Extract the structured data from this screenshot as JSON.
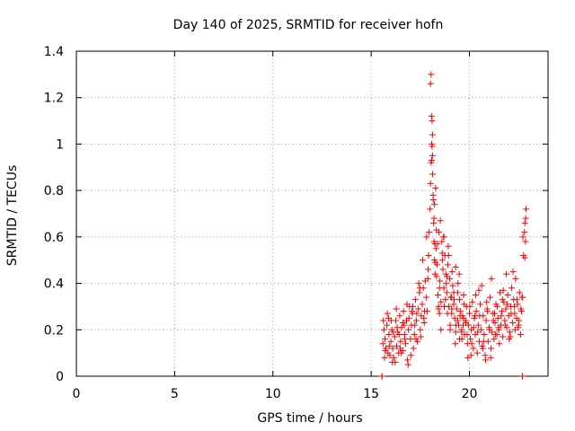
{
  "chart_data": {
    "type": "scatter",
    "title": "Day 140 of 2025, SRMTID for receiver hofn",
    "xlabel": "GPS time / hours",
    "ylabel": "SRMTID / TECUs",
    "xlim": [
      0,
      24
    ],
    "ylim": [
      0,
      1.4
    ],
    "x_ticks": [
      0,
      5,
      10,
      15,
      20
    ],
    "x_tick_labels": [
      "0",
      "5",
      "10",
      "15",
      "20"
    ],
    "y_ticks": [
      0,
      0.2,
      0.4,
      0.6,
      0.8,
      1.0,
      1.2,
      1.4
    ],
    "y_tick_labels": [
      "0",
      "0.2",
      "0.4",
      "0.6",
      "0.8",
      "1",
      "1.2",
      "1.4"
    ],
    "grid": true,
    "marker": "+",
    "marker_color": "#ff0000",
    "series": [
      {
        "name": "SRMTID",
        "x": [
          15.55,
          15.55,
          22.7,
          22.7,
          15.6,
          15.65,
          15.7,
          15.75,
          15.8,
          15.85,
          15.9,
          15.95,
          16.0,
          16.05,
          16.1,
          16.15,
          16.2,
          16.25,
          16.3,
          16.35,
          16.4,
          16.45,
          16.5,
          16.55,
          16.6,
          16.65,
          16.7,
          16.75,
          16.8,
          16.85,
          16.9,
          16.95,
          17.0,
          17.05,
          17.1,
          17.15,
          17.2,
          17.25,
          17.3,
          17.35,
          17.4,
          17.45,
          17.5,
          17.55,
          17.6,
          17.65,
          17.7,
          17.75,
          17.8,
          17.85,
          17.9,
          17.95,
          18.0,
          18.02,
          18.05,
          18.08,
          18.1,
          18.12,
          18.15,
          18.18,
          18.2,
          18.22,
          18.25,
          18.3,
          18.35,
          18.4,
          18.45,
          18.5,
          18.55,
          18.6,
          18.65,
          18.7,
          18.75,
          18.8,
          18.85,
          18.9,
          18.95,
          19.0,
          19.05,
          19.1,
          19.15,
          19.2,
          19.25,
          19.3,
          19.35,
          19.4,
          19.45,
          19.5,
          19.55,
          19.6,
          19.65,
          19.7,
          19.75,
          19.8,
          19.85,
          19.9,
          19.95,
          20.0,
          20.05,
          20.1,
          20.15,
          20.2,
          20.25,
          20.3,
          20.35,
          20.4,
          20.45,
          20.5,
          20.55,
          20.6,
          20.65,
          20.7,
          20.75,
          20.8,
          20.85,
          20.9,
          20.95,
          21.0,
          21.05,
          21.1,
          21.15,
          21.2,
          21.25,
          21.3,
          21.35,
          21.4,
          21.45,
          21.5,
          21.55,
          21.6,
          21.65,
          21.7,
          21.75,
          21.8,
          21.85,
          21.9,
          21.95,
          22.0,
          22.05,
          22.1,
          22.15,
          22.2,
          22.25,
          22.3,
          22.35,
          22.4,
          22.45,
          22.5,
          22.55,
          22.6,
          22.65,
          22.7,
          22.75,
          22.8,
          22.82,
          22.85,
          22.88,
          15.62,
          15.72,
          15.82,
          15.92,
          16.02,
          16.12,
          16.22,
          16.32,
          16.42,
          16.52,
          16.62,
          16.72,
          16.82,
          16.92,
          17.02,
          17.12,
          17.22,
          17.32,
          17.42,
          17.52,
          17.62,
          17.72,
          17.82,
          17.92,
          18.02,
          18.12,
          18.22,
          18.32,
          18.42,
          18.52,
          18.62,
          18.72,
          18.82,
          18.92,
          19.02,
          19.12,
          19.22,
          19.32,
          19.42,
          19.52,
          19.62,
          19.72,
          19.82,
          19.92,
          20.02,
          20.12,
          20.22,
          20.32,
          20.42,
          20.52,
          20.62,
          20.72,
          20.82,
          20.92,
          21.02,
          21.12,
          21.22,
          21.32,
          21.42,
          21.52,
          21.62,
          21.72,
          21.82,
          21.92,
          22.02,
          22.12,
          22.22,
          22.32,
          22.42,
          22.52,
          22.62,
          22.72,
          22.82,
          15.68,
          15.88,
          16.08,
          16.28,
          16.48,
          16.68,
          16.88,
          17.08,
          17.28,
          17.48,
          17.68,
          17.88,
          18.08,
          18.28,
          18.48,
          18.68,
          18.88,
          19.08,
          19.28,
          19.48,
          19.68,
          19.88,
          20.08,
          20.28,
          20.48,
          20.68,
          20.88,
          21.08,
          21.28,
          21.48,
          21.68,
          21.88,
          22.08,
          22.28,
          22.48,
          22.68,
          22.86,
          18.05,
          18.07,
          18.1,
          18.13,
          18.16,
          18.2,
          18.24,
          18.28,
          18.33,
          18.38,
          18.43,
          18.48,
          18.55,
          18.62,
          18.7,
          18.78,
          18.86,
          18.94,
          19.02,
          19.1,
          19.2,
          19.3,
          19.4,
          19.5,
          19.6,
          19.7
        ],
        "y": [
          0.0,
          0.0,
          0.0,
          0.0,
          0.14,
          0.2,
          0.16,
          0.12,
          0.22,
          0.1,
          0.18,
          0.09,
          0.15,
          0.2,
          0.12,
          0.08,
          0.17,
          0.24,
          0.13,
          0.19,
          0.1,
          0.26,
          0.15,
          0.21,
          0.11,
          0.28,
          0.18,
          0.14,
          0.24,
          0.07,
          0.2,
          0.3,
          0.16,
          0.22,
          0.27,
          0.12,
          0.18,
          0.33,
          0.24,
          0.15,
          0.29,
          0.36,
          0.2,
          0.26,
          0.31,
          0.38,
          0.23,
          0.41,
          0.34,
          0.28,
          0.46,
          0.62,
          0.72,
          0.83,
          0.92,
          1.0,
          1.1,
          0.95,
          0.78,
          0.66,
          0.58,
          0.5,
          0.44,
          0.55,
          0.48,
          0.35,
          0.62,
          0.41,
          0.32,
          0.58,
          0.46,
          0.38,
          0.52,
          0.44,
          0.36,
          0.48,
          0.3,
          0.42,
          0.34,
          0.27,
          0.39,
          0.31,
          0.25,
          0.47,
          0.29,
          0.36,
          0.22,
          0.33,
          0.28,
          0.19,
          0.26,
          0.35,
          0.18,
          0.24,
          0.3,
          0.14,
          0.22,
          0.27,
          0.16,
          0.2,
          0.32,
          0.12,
          0.25,
          0.18,
          0.28,
          0.1,
          0.22,
          0.15,
          0.31,
          0.2,
          0.13,
          0.26,
          0.18,
          0.09,
          0.24,
          0.29,
          0.15,
          0.21,
          0.34,
          0.12,
          0.19,
          0.27,
          0.16,
          0.23,
          0.31,
          0.18,
          0.25,
          0.2,
          0.36,
          0.22,
          0.28,
          0.17,
          0.32,
          0.24,
          0.29,
          0.21,
          0.35,
          0.26,
          0.19,
          0.3,
          0.38,
          0.23,
          0.33,
          0.27,
          0.42,
          0.25,
          0.31,
          0.22,
          0.36,
          0.18,
          0.28,
          0.34,
          0.52,
          0.62,
          0.66,
          0.58,
          0.72,
          0.24,
          0.11,
          0.27,
          0.13,
          0.24,
          0.19,
          0.06,
          0.21,
          0.18,
          0.1,
          0.23,
          0.16,
          0.31,
          0.25,
          0.09,
          0.3,
          0.22,
          0.27,
          0.4,
          0.17,
          0.5,
          0.28,
          0.6,
          0.52,
          1.26,
          1.04,
          0.74,
          0.63,
          0.29,
          0.67,
          0.53,
          0.3,
          0.4,
          0.56,
          0.2,
          0.45,
          0.33,
          0.22,
          0.4,
          0.26,
          0.16,
          0.31,
          0.23,
          0.08,
          0.3,
          0.14,
          0.21,
          0.35,
          0.19,
          0.26,
          0.39,
          0.15,
          0.07,
          0.28,
          0.2,
          0.42,
          0.24,
          0.18,
          0.3,
          0.14,
          0.26,
          0.37,
          0.22,
          0.31,
          0.16,
          0.27,
          0.45,
          0.2,
          0.33,
          0.24,
          0.29,
          0.6,
          0.51,
          0.08,
          0.25,
          0.06,
          0.29,
          0.12,
          0.22,
          0.05,
          0.28,
          0.16,
          0.38,
          0.25,
          0.42,
          0.93,
          0.81,
          0.38,
          0.6,
          0.27,
          0.34,
          0.14,
          0.44,
          0.22,
          0.18,
          0.09,
          0.26,
          0.37,
          0.12,
          0.32,
          0.08,
          0.27,
          0.21,
          0.33,
          0.44,
          0.17,
          0.3,
          0.21,
          0.34,
          0.68,
          1.3,
          1.12,
          0.99,
          0.87,
          0.76,
          0.68,
          0.57,
          0.49,
          0.43,
          0.57,
          0.3,
          0.27,
          0.2,
          0.5,
          0.6,
          0.33,
          0.43,
          0.52,
          0.22,
          0.29,
          0.36,
          0.19,
          0.24,
          0.16,
          0.2,
          0.25
        ]
      }
    ]
  }
}
